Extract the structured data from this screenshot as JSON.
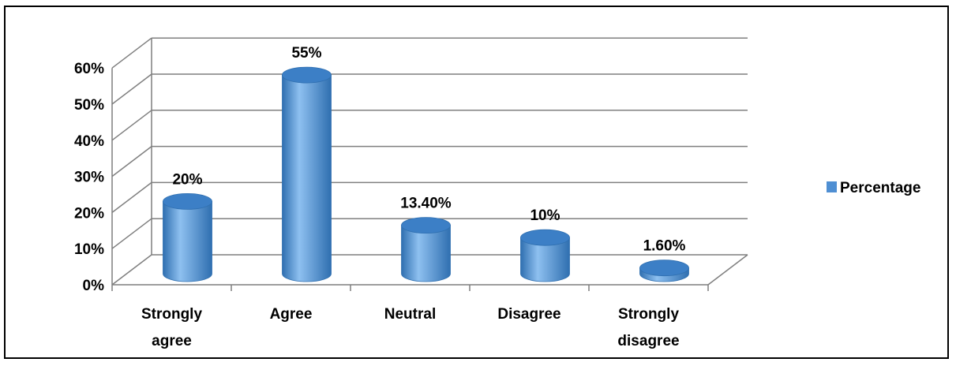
{
  "chart_data": {
    "type": "bar",
    "style": "3d-cylinder",
    "categories": [
      "Strongly agree",
      "Agree",
      "Neutral",
      "Disagree",
      "Strongly disagree"
    ],
    "category_lines": [
      [
        "Strongly",
        "agree"
      ],
      [
        "Agree"
      ],
      [
        "Neutral"
      ],
      [
        "Disagree"
      ],
      [
        "Strongly",
        "disagree"
      ]
    ],
    "series": [
      {
        "name": "Percentage",
        "values": [
          20,
          55,
          13.4,
          10,
          1.6
        ]
      }
    ],
    "data_labels": [
      "20%",
      "55%",
      "13.40%",
      "10%",
      "1.60%"
    ],
    "y_ticks": [
      "0%",
      "10%",
      "20%",
      "30%",
      "40%",
      "50%",
      "60%"
    ],
    "ylim": [
      0,
      60
    ],
    "grid": true,
    "legend_position": "right",
    "title": "",
    "xlabel": "",
    "ylabel": "",
    "colors": {
      "bar_fill": "#4a8fd3",
      "bar_light": "#8ec0f0",
      "bar_dark": "#2f6fb0",
      "bar_top": "#3c7fc6",
      "grid": "#7f7f7f",
      "legend_swatch": "#4f8fd3"
    }
  }
}
